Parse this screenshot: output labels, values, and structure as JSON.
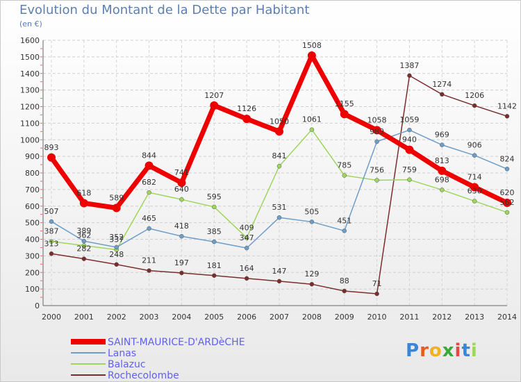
{
  "title": "Evolution du Montant de la Dette par Habitant",
  "subtitle": "(en €)",
  "logo": "Proxiti",
  "colors": {
    "primary": "#ee0000",
    "lanas": "#6d9dc9",
    "balazuc": "#9ed65c",
    "rochecolombe": "#7b2c2c"
  },
  "chart_data": {
    "type": "line",
    "title": "Evolution du Montant de la Dette par Habitant",
    "ylabel": "(en €)",
    "xlabel": "",
    "x": [
      2000,
      2001,
      2002,
      2003,
      2004,
      2005,
      2006,
      2007,
      2008,
      2009,
      2010,
      2011,
      2012,
      2013,
      2014
    ],
    "ylim": [
      0,
      1600
    ],
    "yticks": [
      0,
      100,
      200,
      300,
      400,
      500,
      600,
      700,
      800,
      900,
      1000,
      1100,
      1200,
      1300,
      1400,
      1500,
      1600
    ],
    "grid": true,
    "legend": "bottom-left",
    "series": [
      {
        "name": "SAINT-MAURICE-D'ARDèCHE",
        "color": "#ee0000",
        "values": [
          893,
          618,
          589,
          844,
          741,
          1207,
          1126,
          1050,
          1508,
          1155,
          1058,
          940,
          813,
          714,
          620
        ]
      },
      {
        "name": "Lanas",
        "color": "#6d9dc9",
        "values": [
          507,
          389,
          352,
          465,
          418,
          385,
          347,
          531,
          505,
          451,
          989,
          1059,
          969,
          906,
          824
        ]
      },
      {
        "name": "Balazuc",
        "color": "#9ed65c",
        "values": [
          387,
          362,
          337,
          682,
          640,
          595,
          409,
          841,
          1061,
          785,
          756,
          759,
          698,
          630,
          562
        ]
      },
      {
        "name": "Rochecolombe",
        "color": "#7b2c2c",
        "values": [
          313,
          282,
          248,
          211,
          197,
          181,
          164,
          147,
          129,
          88,
          71,
          1387,
          1274,
          1206,
          1142
        ]
      }
    ]
  }
}
